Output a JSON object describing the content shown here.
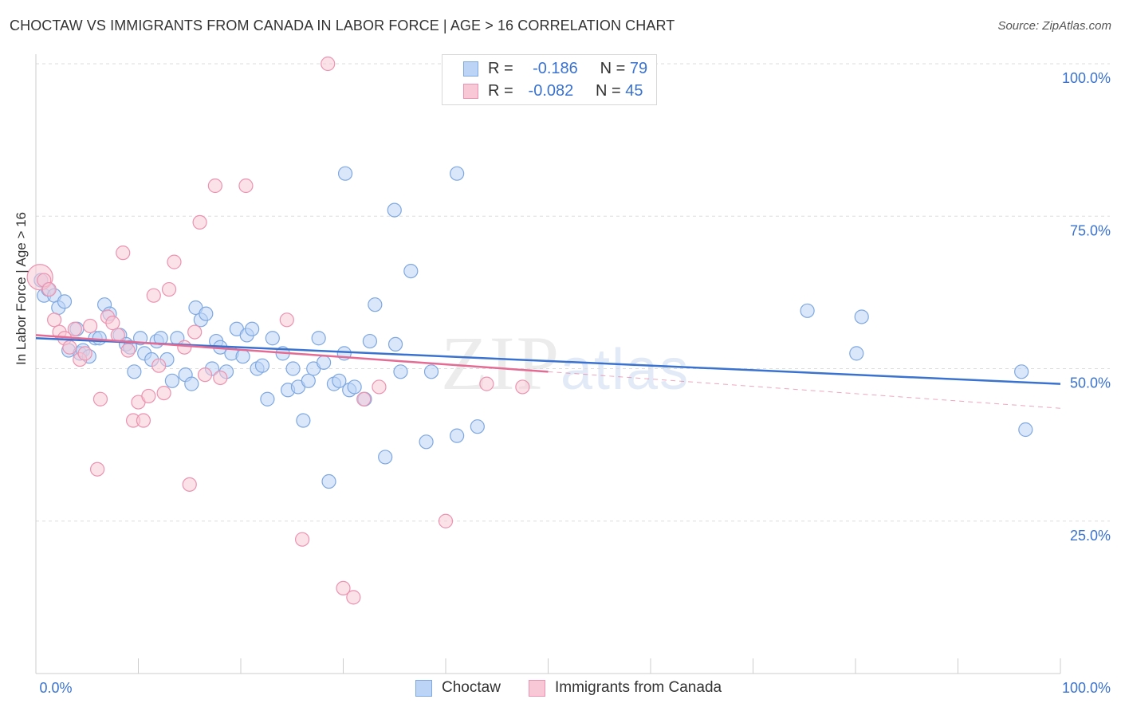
{
  "title": "CHOCTAW VS IMMIGRANTS FROM CANADA IN LABOR FORCE | AGE > 16 CORRELATION CHART",
  "source": "Source: ZipAtlas.com",
  "watermark": {
    "zip": "ZIP",
    "atlas": "atlas"
  },
  "legend": {
    "r_label": "R =",
    "n_label": "N =",
    "rows": [
      {
        "r": "-0.186",
        "n": "79"
      },
      {
        "r": "-0.082",
        "n": "45"
      }
    ]
  },
  "bottom_legend": [
    "Choctaw",
    "Immigrants from Canada"
  ],
  "colors": {
    "blue_fill": "#bcd4f5",
    "blue_stroke": "#7fa8e0",
    "blue_line": "#3a72cf",
    "pink_fill": "#f8c8d6",
    "pink_stroke": "#eb93b0",
    "pink_line": "#e46b94",
    "axis_label": "#3a72cf",
    "grid": "#dddddd"
  },
  "chart_data": {
    "type": "scatter",
    "title": "CHOCTAW VS IMMIGRANTS FROM CANADA IN LABOR FORCE | AGE > 16 CORRELATION CHART",
    "xlabel": "",
    "ylabel": "In Labor Force | Age > 16",
    "xlim": [
      0,
      100
    ],
    "ylim": [
      0,
      100
    ],
    "x_tick_labels": [
      "0.0%",
      "100.0%"
    ],
    "y_ticks": [
      25,
      50,
      75,
      100
    ],
    "y_tick_labels": [
      "25.0%",
      "50.0%",
      "75.0%",
      "100.0%"
    ],
    "grid": true,
    "series": [
      {
        "name": "Choctaw",
        "r": -0.186,
        "n": 79,
        "trend": {
          "x0": 0,
          "y0": 55.0,
          "x1": 100,
          "y1": 47.5
        },
        "points": [
          [
            0.5,
            64.5
          ],
          [
            0.8,
            62
          ],
          [
            1.2,
            63
          ],
          [
            1.8,
            62
          ],
          [
            2.2,
            60
          ],
          [
            2.8,
            61
          ],
          [
            3.2,
            53
          ],
          [
            4.0,
            56.5
          ],
          [
            4.3,
            52.5
          ],
          [
            4.6,
            53
          ],
          [
            5.2,
            52
          ],
          [
            5.8,
            55
          ],
          [
            6.2,
            55
          ],
          [
            6.7,
            60.5
          ],
          [
            7.2,
            59
          ],
          [
            8.2,
            55.5
          ],
          [
            8.8,
            54
          ],
          [
            9.2,
            53.5
          ],
          [
            9.6,
            49.5
          ],
          [
            10.2,
            55
          ],
          [
            10.6,
            52.5
          ],
          [
            11.3,
            51.5
          ],
          [
            11.8,
            54.5
          ],
          [
            12.2,
            55
          ],
          [
            12.8,
            51.5
          ],
          [
            13.3,
            48
          ],
          [
            13.8,
            55
          ],
          [
            14.6,
            49
          ],
          [
            15.2,
            47.5
          ],
          [
            15.6,
            60
          ],
          [
            16.1,
            58
          ],
          [
            16.6,
            59
          ],
          [
            17.2,
            50
          ],
          [
            17.6,
            54.5
          ],
          [
            18.0,
            53.5
          ],
          [
            18.6,
            49.5
          ],
          [
            19.1,
            52.5
          ],
          [
            19.6,
            56.5
          ],
          [
            20.2,
            52
          ],
          [
            20.6,
            55.5
          ],
          [
            21.1,
            56.5
          ],
          [
            21.6,
            50
          ],
          [
            22.1,
            50.5
          ],
          [
            22.6,
            45
          ],
          [
            23.1,
            55
          ],
          [
            24.1,
            52.5
          ],
          [
            24.6,
            46.5
          ],
          [
            25.1,
            50
          ],
          [
            25.6,
            47
          ],
          [
            26.1,
            41.5
          ],
          [
            26.6,
            48
          ],
          [
            27.1,
            50
          ],
          [
            27.6,
            55
          ],
          [
            28.1,
            51
          ],
          [
            28.6,
            31.5
          ],
          [
            29.1,
            47.5
          ],
          [
            29.6,
            48
          ],
          [
            30.1,
            52.5
          ],
          [
            30.6,
            46.5
          ],
          [
            31.1,
            47
          ],
          [
            32.1,
            45
          ],
          [
            32.6,
            54.5
          ],
          [
            33.1,
            60.5
          ],
          [
            34.1,
            35.5
          ],
          [
            35.1,
            54
          ],
          [
            35.6,
            49.5
          ],
          [
            36.6,
            66
          ],
          [
            38.1,
            38
          ],
          [
            38.6,
            49.5
          ],
          [
            41.1,
            39
          ],
          [
            43.1,
            40.5
          ],
          [
            30.2,
            82
          ],
          [
            41.1,
            82
          ],
          [
            35.0,
            76
          ],
          [
            75.3,
            59.5
          ],
          [
            80.6,
            58.5
          ],
          [
            80.1,
            52.5
          ],
          [
            96.2,
            49.5
          ],
          [
            96.6,
            40
          ]
        ]
      },
      {
        "name": "Immigrants from Canada",
        "r": -0.082,
        "n": 45,
        "trend": {
          "x0": 0,
          "y0": 55.5,
          "x1": 50,
          "y1": 49.5,
          "dashed_to": {
            "x": 100,
            "y": 43.5
          }
        },
        "points": [
          [
            0.4,
            65
          ],
          [
            0.8,
            64.5
          ],
          [
            1.3,
            63
          ],
          [
            1.8,
            58
          ],
          [
            2.3,
            56
          ],
          [
            2.8,
            55
          ],
          [
            3.3,
            53.5
          ],
          [
            3.8,
            56.5
          ],
          [
            4.3,
            51.5
          ],
          [
            4.8,
            52.5
          ],
          [
            5.3,
            57
          ],
          [
            6.3,
            45
          ],
          [
            6.0,
            33.5
          ],
          [
            7.0,
            58.5
          ],
          [
            7.5,
            57.5
          ],
          [
            8.0,
            55.5
          ],
          [
            8.5,
            69
          ],
          [
            9.0,
            53
          ],
          [
            9.5,
            41.5
          ],
          [
            10.0,
            44.5
          ],
          [
            10.5,
            41.5
          ],
          [
            11.0,
            45.5
          ],
          [
            11.5,
            62
          ],
          [
            12.0,
            50.5
          ],
          [
            12.5,
            46
          ],
          [
            13.0,
            63
          ],
          [
            13.5,
            67.5
          ],
          [
            14.5,
            53.5
          ],
          [
            15.0,
            31
          ],
          [
            15.5,
            56
          ],
          [
            16.0,
            74
          ],
          [
            16.5,
            49
          ],
          [
            17.5,
            80
          ],
          [
            18.0,
            48.5
          ],
          [
            20.5,
            80
          ],
          [
            24.5,
            58
          ],
          [
            26.0,
            22
          ],
          [
            28.5,
            100
          ],
          [
            30.0,
            14
          ],
          [
            31.0,
            12.5
          ],
          [
            32.0,
            45
          ],
          [
            33.5,
            47
          ],
          [
            40.0,
            25
          ],
          [
            47.5,
            47
          ],
          [
            44.0,
            47.5
          ]
        ]
      }
    ]
  }
}
